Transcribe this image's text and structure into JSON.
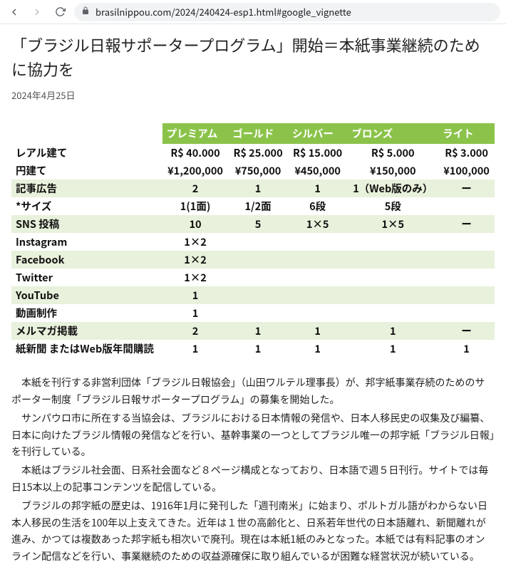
{
  "browser": {
    "url": "brasilnippou.com/2024/240424-esp1.html#google_vignette"
  },
  "page": {
    "title": "「ブラジル日報サポータープログラム」開始＝本紙事業継続のために協力を",
    "date": "2024年4月25日"
  },
  "table": {
    "type": "table",
    "header_bg": "#8bc34a",
    "header_fg": "#ffffff",
    "row_odd_bg": "#ffffff",
    "row_even_bg": "#e8f1db",
    "text_color": "#111111",
    "font_size": 14.5,
    "columns": [
      "",
      "プレミアム",
      "ゴールド",
      "シルバー",
      "ブロンズ",
      "ライト"
    ],
    "rows": [
      {
        "label": "レアル建て",
        "cells": [
          "R$ 40.000",
          "R$ 25.000",
          "R$ 15.000",
          "R$ 5.000",
          "R$ 3.000"
        ],
        "parity": "odd"
      },
      {
        "label": "円建て",
        "cells": [
          "¥1,200,000",
          "¥750,000",
          "¥450,000",
          "¥150,000",
          "¥100,000"
        ],
        "parity": "odd"
      },
      {
        "label": "記事広告",
        "cells": [
          "2",
          "1",
          "1",
          "1（Web版のみ）",
          "ー"
        ],
        "parity": "even"
      },
      {
        "label": "*サイズ",
        "cells": [
          "1(1面)",
          "1/2面",
          "6段",
          "5段",
          ""
        ],
        "parity": "odd"
      },
      {
        "label": "SNS 投稿",
        "cells": [
          "10",
          "5",
          "1×5",
          "1×5",
          "ー"
        ],
        "parity": "even"
      },
      {
        "label": "Instagram",
        "cells": [
          "1×2",
          "",
          "",
          "",
          ""
        ],
        "parity": "odd"
      },
      {
        "label": "Facebook",
        "cells": [
          "1×2",
          "",
          "",
          "",
          ""
        ],
        "parity": "even"
      },
      {
        "label": "Twitter",
        "cells": [
          "1×2",
          "",
          "",
          "",
          ""
        ],
        "parity": "odd"
      },
      {
        "label": "YouTube",
        "cells": [
          "1",
          "",
          "",
          "",
          ""
        ],
        "parity": "even"
      },
      {
        "label": "動画制作",
        "cells": [
          "1",
          "",
          "",
          "",
          ""
        ],
        "parity": "odd"
      },
      {
        "label": "メルマガ掲載",
        "cells": [
          "2",
          "1",
          "1",
          "1",
          "ー"
        ],
        "parity": "even"
      },
      {
        "label": "紙新聞 またはWeb版年間購読",
        "cells": [
          "1",
          "1",
          "1",
          "1",
          "1"
        ],
        "parity": "odd"
      }
    ]
  },
  "article": {
    "paragraphs": [
      "本紙を刊行する非営利団体「ブラジル日報協会」（山田ワルテル理事長）が、邦字紙事業存続のためのサポーター制度「ブラジル日報サポータープログラム」の募集を開始した。",
      "サンパウロ市に所在する当協会は、ブラジルにおける日本情報の発信や、日本人移民史の収集及び編纂、日本に向けたブラジル情報の発信などを行い、基幹事業の一つとしてブラジル唯一の邦字紙「ブラジル日報」を刊行している。",
      "本紙はブラジル社会面、日系社会面など８ページ構成となっており、日本語で週５日刊行。サイトでは毎日15本以上の記事コンテンツを配信している。",
      "ブラジルの邦字紙の歴史は、1916年1月に発刊した「週刊南米」に始まり、ポルトガル語がわからない日本人移民の生活を100年以上支えてきた。近年は１世の高齢化と、日系若年世代の日本語離れ、新聞離れが進み、かつては複数あった邦字紙も相次いで廃刊。現在は本紙1紙のみとなった。本紙では有料記事のオンライン配信などを行い、事業継続のための収益源確保に取り組んでいるが困難な経営状況が続いている。"
    ]
  }
}
